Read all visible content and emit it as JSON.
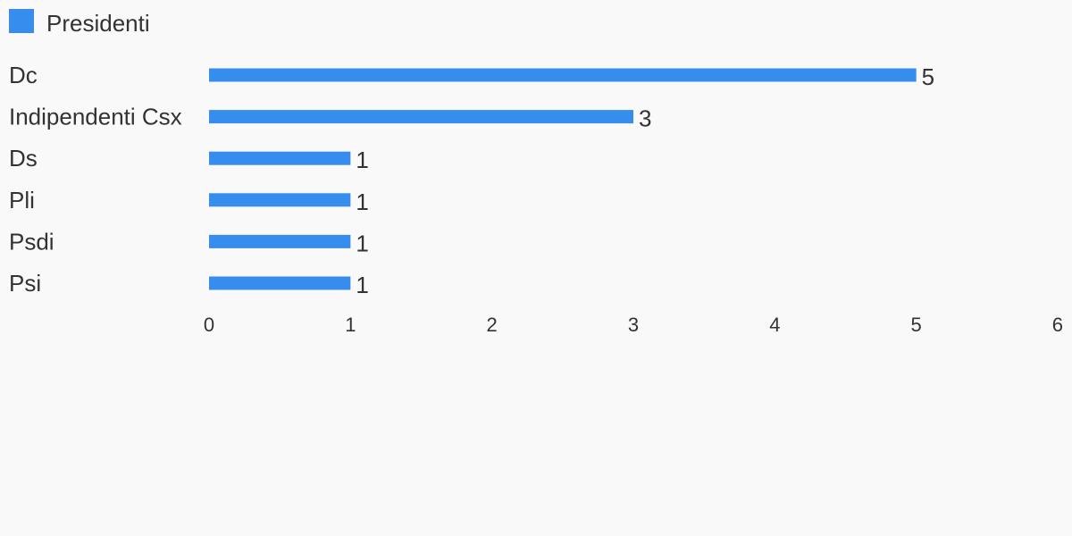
{
  "chart_data": {
    "type": "bar",
    "orientation": "horizontal",
    "categories": [
      "Dc",
      "Indipendenti Csx",
      "Ds",
      "Pli",
      "Psdi",
      "Psi"
    ],
    "series": [
      {
        "name": "Presidenti",
        "values": [
          5,
          3,
          1,
          1,
          1,
          1
        ],
        "color": "#368ded"
      }
    ],
    "xlim": [
      0,
      6
    ],
    "xticks": [
      "0",
      "1",
      "2",
      "3",
      "4",
      "5",
      "6"
    ],
    "grid": false,
    "legend_position": "top-left",
    "data_labels": true
  },
  "legend": {
    "label": "Presidenti",
    "color": "#368ded"
  },
  "colors": {
    "background": "#f9f9f9",
    "text": "#333333",
    "bar": "#368ded"
  }
}
